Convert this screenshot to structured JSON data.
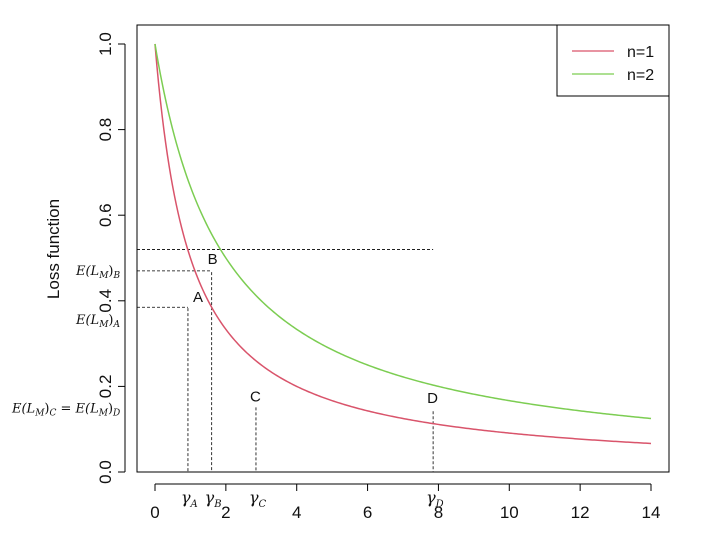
{
  "chart_data": {
    "type": "line",
    "ylabel": "Loss function",
    "xlim": [
      0,
      14
    ],
    "ylim": [
      0,
      1
    ],
    "x_ticks": [
      0,
      2,
      4,
      6,
      8,
      10,
      12,
      14
    ],
    "y_ticks": [
      0.0,
      0.2,
      0.4,
      0.6,
      0.8,
      1.0
    ],
    "legend_position": "top-right",
    "series": [
      {
        "name": "n=1",
        "color": "#d9546b",
        "x": [
          0,
          0.25,
          0.5,
          0.75,
          1,
          1.5,
          2,
          3,
          4,
          5,
          6,
          7,
          8,
          9,
          10,
          11,
          12,
          13,
          14
        ],
        "y": [
          1.0,
          0.8,
          0.667,
          0.571,
          0.5,
          0.4,
          0.333,
          0.25,
          0.2,
          0.167,
          0.143,
          0.125,
          0.111,
          0.1,
          0.091,
          0.083,
          0.077,
          0.071,
          0.067
        ]
      },
      {
        "name": "n=2",
        "color": "#7ccd52",
        "x": [
          0,
          0.25,
          0.5,
          0.75,
          1,
          1.5,
          2,
          3,
          4,
          5,
          6,
          7,
          8,
          9,
          10,
          11,
          12,
          13,
          14
        ],
        "y": [
          1.0,
          0.889,
          0.8,
          0.727,
          0.667,
          0.571,
          0.5,
          0.4,
          0.333,
          0.286,
          0.25,
          0.222,
          0.2,
          0.182,
          0.167,
          0.154,
          0.143,
          0.133,
          0.125
        ]
      }
    ],
    "annotations": {
      "points": [
        {
          "label": "A",
          "x": 0.93,
          "y": 0.383
        },
        {
          "label": "B",
          "x": 1.6,
          "y": 0.467
        },
        {
          "label": "C",
          "x": 2.85,
          "y": 0.151
        },
        {
          "label": "D",
          "x": 7.85,
          "y": 0.142
        }
      ],
      "hlines": [
        {
          "y": 0.52,
          "x_end": 7.85
        },
        {
          "y": 0.47,
          "x_end": 1.6
        },
        {
          "y": 0.385,
          "x_end": 0.93
        }
      ],
      "vlines": [
        {
          "x": 0.93
        },
        {
          "x": 1.6
        },
        {
          "x": 2.85
        },
        {
          "x": 7.85
        }
      ],
      "y_labels": [
        {
          "main": "E(L",
          "sub1": "M",
          "mid": ")",
          "sub2": "B",
          "y": 0.47
        },
        {
          "main": "E(L",
          "sub1": "M",
          "mid": ")",
          "sub2": "A",
          "y": 0.355
        },
        {
          "main": "E(L",
          "sub1": "M",
          "mid": ")",
          "sub2": "C",
          "eq": " = E(L",
          "sub3": "M",
          "end": ")",
          "sub4": "D",
          "y": 0.148
        }
      ],
      "x_labels": [
        {
          "greek": "γ",
          "sub": "A",
          "x": 0.93
        },
        {
          "greek": "γ",
          "sub": "B",
          "x": 1.6
        },
        {
          "greek": "γ",
          "sub": "C",
          "x": 2.85
        },
        {
          "greek": "γ",
          "sub": "D",
          "x": 7.85
        }
      ]
    }
  }
}
